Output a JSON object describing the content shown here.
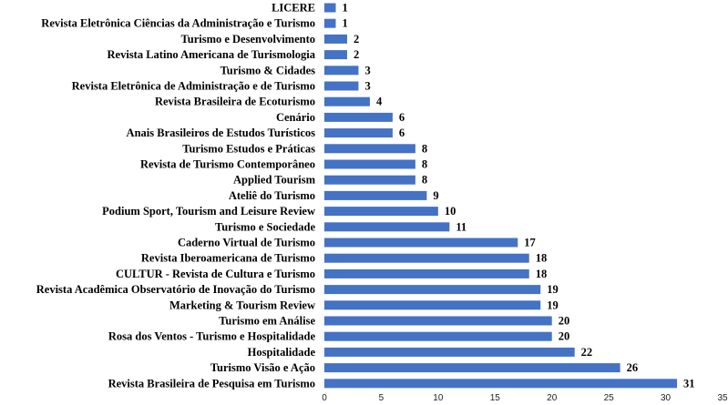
{
  "chart_data": {
    "type": "bar",
    "orientation": "horizontal",
    "categories": [
      "LICERE",
      "Revista Eletrônica Ciências da Administração e Turismo",
      "Turismo e Desenvolvimento",
      "Revista Latino Americana de Turismologia",
      "Turismo & Cidades",
      "Revista Eletrônica de Administração e de Turismo",
      "Revista Brasileira de Ecoturismo",
      "Cenário",
      "Anais Brasileiros de Estudos Turísticos",
      "Turismo Estudos e Práticas",
      "Revista de Turismo Contemporâneo",
      "Applied Tourism",
      "Ateliê do Turismo",
      "Podium Sport, Tourism and Leisure Review",
      "Turismo e Sociedade",
      "Caderno Virtual de Turismo",
      "Revista Iberoamericana de Turismo",
      "CULTUR - Revista de Cultura e Turismo",
      "Revista Acadêmica Observatório de Inovação do Turismo",
      "Marketing & Tourism Review",
      "Turismo em Análise",
      "Rosa dos Ventos - Turismo e Hospitalidade",
      "Hospitalidade",
      "Turismo Visão e Ação",
      "Revista Brasileira de Pesquisa em Turismo"
    ],
    "values": [
      1,
      1,
      2,
      2,
      3,
      3,
      4,
      6,
      6,
      8,
      8,
      8,
      9,
      10,
      11,
      17,
      18,
      18,
      19,
      19,
      20,
      20,
      22,
      26,
      31
    ],
    "xlim": [
      0,
      35
    ],
    "xticks": [
      0,
      5,
      10,
      15,
      20,
      25,
      30,
      35
    ],
    "grid": false,
    "legend": "none",
    "bar_color": "#4472c4"
  }
}
